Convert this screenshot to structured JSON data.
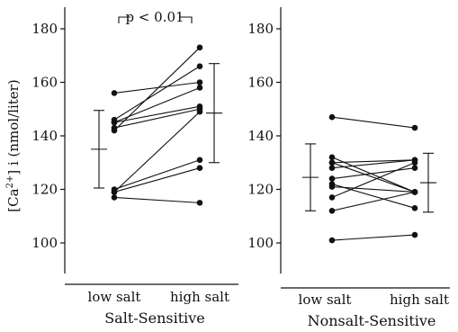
{
  "chart_data": [
    {
      "type": "line",
      "group_label": "Salt-Sensitive",
      "ylabel": "[Ca2+] i (nmol/liter)",
      "categories": [
        "low salt",
        "high salt"
      ],
      "ylim": [
        85,
        190
      ],
      "yticks": [
        100,
        120,
        140,
        160,
        180
      ],
      "annotation": "p < 0.01",
      "series": [
        {
          "values": [
            156,
            160
          ]
        },
        {
          "values": [
            146,
            166
          ]
        },
        {
          "values": [
            145,
            158
          ]
        },
        {
          "values": [
            145,
            151
          ]
        },
        {
          "values": [
            143,
            150
          ]
        },
        {
          "values": [
            142,
            173
          ]
        },
        {
          "values": [
            120,
            131
          ]
        },
        {
          "values": [
            119,
            128
          ]
        },
        {
          "values": [
            119,
            149
          ]
        },
        {
          "values": [
            117,
            115
          ]
        }
      ],
      "mean_sd": [
        {
          "category": "low salt",
          "mean": 135,
          "sd": 14.5
        },
        {
          "category": "high salt",
          "mean": 148.5,
          "sd": 18.5
        }
      ]
    },
    {
      "type": "line",
      "group_label": "Nonsalt-Sensitive",
      "ylabel": "",
      "categories": [
        "low salt",
        "high salt"
      ],
      "ylim": [
        85,
        190
      ],
      "yticks": [
        100,
        120,
        140,
        160,
        180
      ],
      "series": [
        {
          "values": [
            147,
            143
          ]
        },
        {
          "values": [
            132,
            119
          ]
        },
        {
          "values": [
            130,
            131
          ]
        },
        {
          "values": [
            130,
            119
          ]
        },
        {
          "values": [
            128,
            131
          ]
        },
        {
          "values": [
            124,
            128
          ]
        },
        {
          "values": [
            122,
            113
          ]
        },
        {
          "values": [
            121,
            119
          ]
        },
        {
          "values": [
            117,
            130
          ]
        },
        {
          "values": [
            112,
            119
          ]
        },
        {
          "values": [
            101,
            103
          ]
        }
      ],
      "mean_sd": [
        {
          "category": "low salt",
          "mean": 124.5,
          "sd": 12.5
        },
        {
          "category": "high salt",
          "mean": 122.5,
          "sd": 11
        }
      ]
    }
  ]
}
